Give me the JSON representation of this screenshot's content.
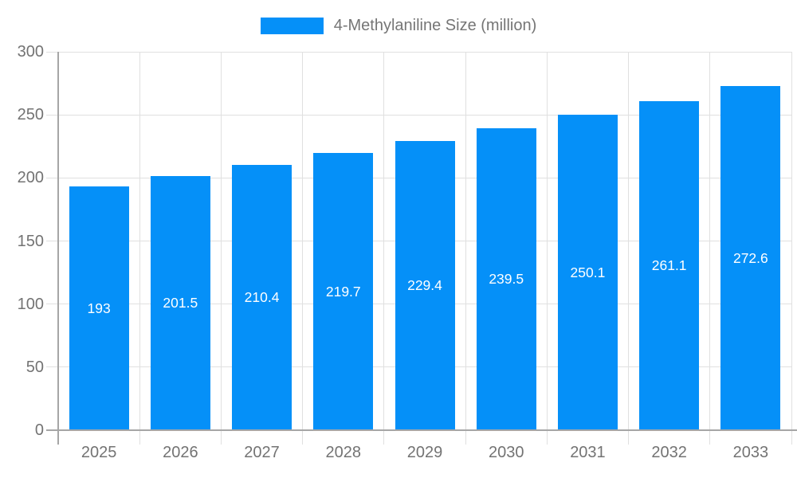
{
  "chart_data": {
    "type": "bar",
    "series_name": "4-Methylaniline Size (million)",
    "categories": [
      "2025",
      "2026",
      "2027",
      "2028",
      "2029",
      "2030",
      "2031",
      "2032",
      "2033"
    ],
    "values": [
      193,
      201.5,
      210.4,
      219.7,
      229.4,
      239.5,
      250.1,
      261.1,
      272.6
    ],
    "xlabel": "",
    "ylabel": "",
    "ylim": [
      0,
      300
    ],
    "ytick_interval": 50,
    "ytick_labels": [
      "0",
      "50",
      "100",
      "150",
      "200",
      "250",
      "300"
    ],
    "grid": true,
    "value_labels_shown": true,
    "legend_position": "top-center",
    "colors": {
      "bar": "#0590f8",
      "grid": "#e0e0e0",
      "axis": "#a6a6a6",
      "tick_text": "#737373",
      "legend_text": "#757575",
      "value_label_text": "#ffffff",
      "background": "#ffffff"
    }
  }
}
